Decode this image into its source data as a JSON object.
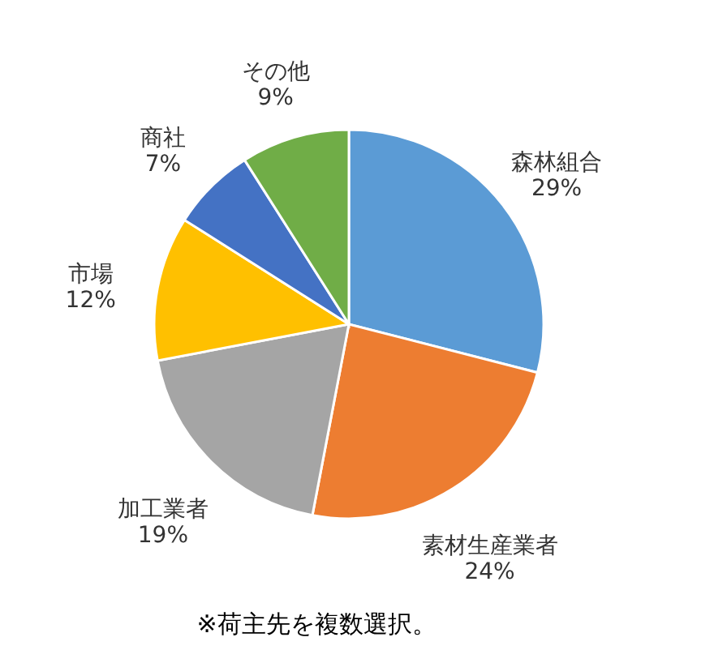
{
  "chart_data": {
    "type": "pie",
    "categories": [
      "森林組合",
      "素材生産業者",
      "加工業者",
      "市場",
      "商社",
      "その他"
    ],
    "values": [
      29,
      24,
      19,
      12,
      7,
      9
    ],
    "value_labels": [
      "29%",
      "24%",
      "19%",
      "12%",
      "7%",
      "9%"
    ],
    "colors": [
      "#5b9bd5",
      "#ed7d31",
      "#a5a5a5",
      "#ffc000",
      "#4472c4",
      "#70ad47"
    ],
    "legend": false,
    "annotations": [
      "※荷主先を複数選択。"
    ]
  }
}
